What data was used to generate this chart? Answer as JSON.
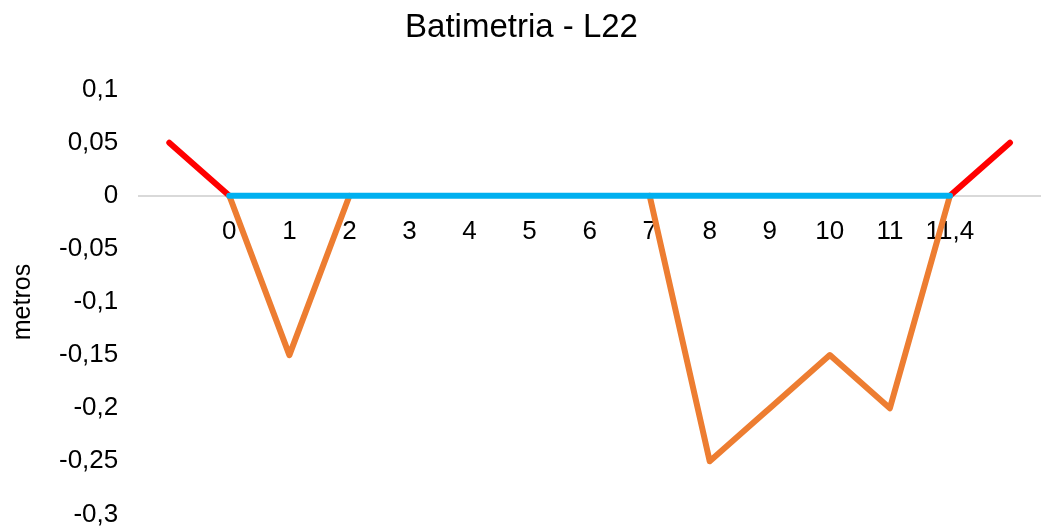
{
  "chart_data": {
    "type": "line",
    "title": "Batimetria - L22",
    "ylabel": "metros",
    "categories": [
      null,
      "0",
      "1",
      "2",
      "3",
      "4",
      "5",
      "6",
      "7",
      "8",
      "9",
      "10",
      "11",
      "11,4",
      null
    ],
    "series": [
      {
        "color": "#ff0000",
        "values": [
          0.05,
          0,
          null,
          null,
          null,
          null,
          null,
          null,
          null,
          null,
          null,
          null,
          null,
          0,
          0.05
        ]
      },
      {
        "color": "#ed7d31",
        "values": [
          null,
          0,
          -0.15,
          0,
          null,
          null,
          null,
          null,
          0,
          -0.25,
          -0.2,
          -0.15,
          -0.2,
          0,
          null
        ]
      },
      {
        "color": "#00b0f0",
        "values": [
          null,
          0,
          0,
          0,
          0,
          0,
          0,
          0,
          0,
          0,
          0,
          0,
          0,
          0,
          null
        ]
      }
    ],
    "ylim": [
      -0.3,
      0.1
    ],
    "yticks": [
      {
        "value": -0.3,
        "label": "-0,3"
      },
      {
        "value": -0.25,
        "label": "-0,25"
      },
      {
        "value": -0.2,
        "label": "-0,2"
      },
      {
        "value": -0.15,
        "label": "-0,15"
      },
      {
        "value": -0.1,
        "label": "-0,1"
      },
      {
        "value": -0.05,
        "label": "-0,05"
      },
      0,
      {
        "value": 0.05,
        "label": "0,05"
      },
      {
        "value": 0.1,
        "label": "0,1"
      }
    ],
    "grid": false,
    "legend": false,
    "marker": "none",
    "line_style": "solid"
  }
}
